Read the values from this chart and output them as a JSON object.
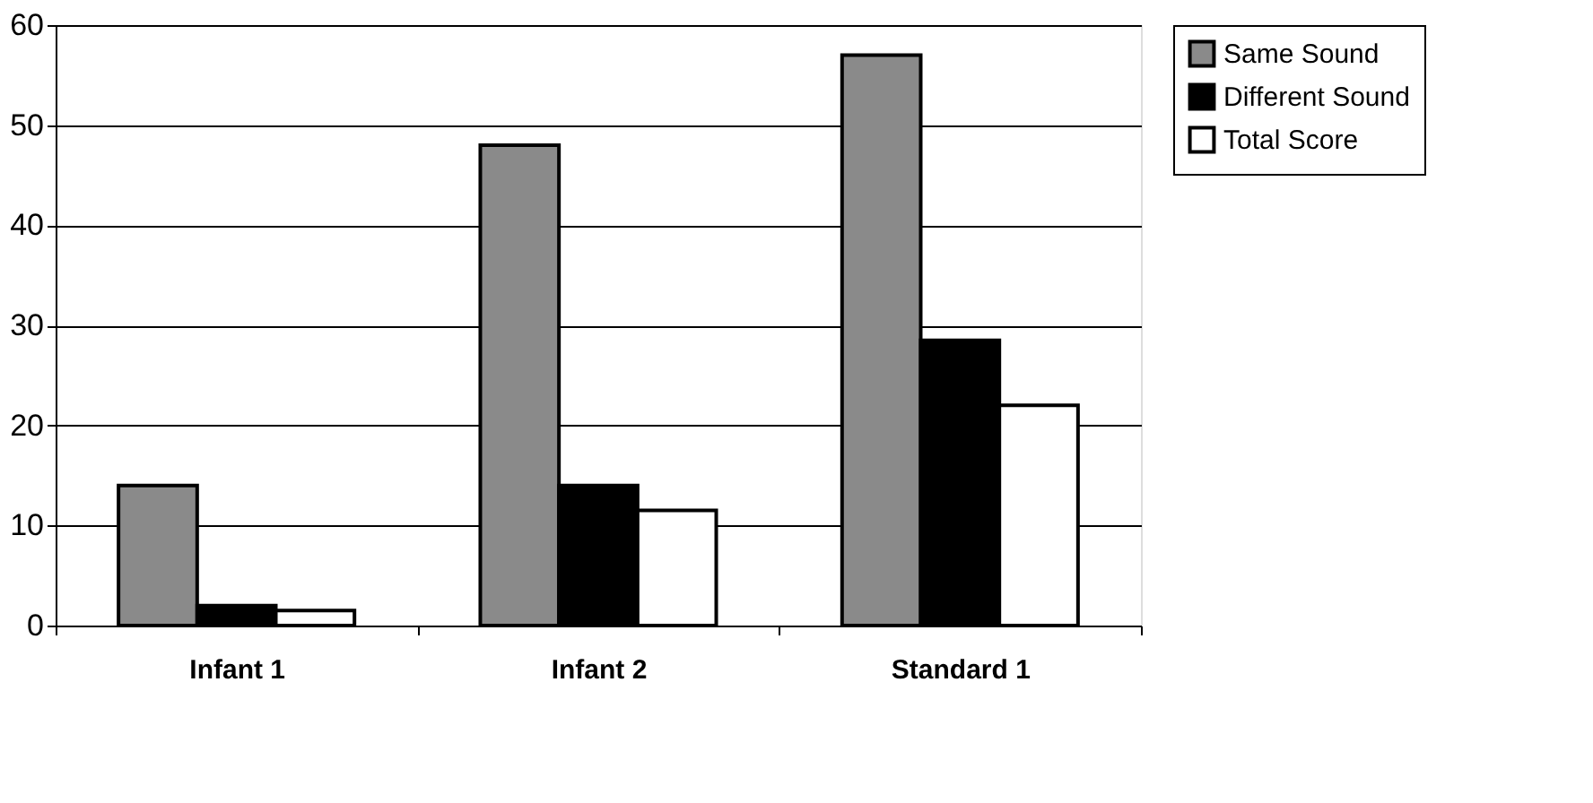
{
  "chart_data": {
    "type": "bar",
    "categories": [
      "Infant 1",
      "Infant 2",
      "Standard 1"
    ],
    "series": [
      {
        "name": "Same Sound",
        "color": "#8a8a8a",
        "values": [
          14,
          48,
          57
        ]
      },
      {
        "name": "Different Sound",
        "color": "#000000",
        "values": [
          2,
          14,
          28.5
        ]
      },
      {
        "name": "Total Score",
        "color": "#ffffff",
        "values": [
          1.5,
          11.5,
          22
        ]
      }
    ],
    "ylim": [
      0,
      60
    ],
    "yticks": [
      0,
      10,
      20,
      30,
      40,
      50,
      60
    ],
    "grid": "y",
    "legend": "right"
  }
}
